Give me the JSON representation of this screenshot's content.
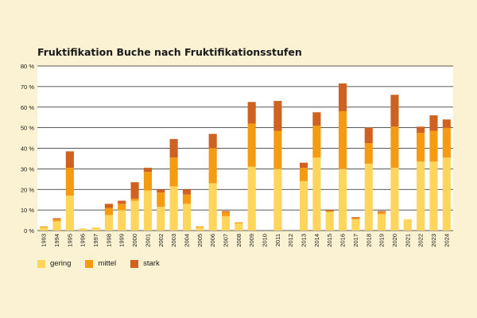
{
  "colors": {
    "background": "#fbf2d3",
    "plot_background": "#ffffff",
    "gridline": "#222222",
    "gering": "#ffd55c",
    "mittel": "#f59b12",
    "stark": "#cf6220"
  },
  "chart_data": {
    "type": "bar",
    "stacked": true,
    "title": "Fruktifikation Buche nach Fruktifikationsstufen",
    "xlabel": "",
    "ylabel": "",
    "ylim": [
      0,
      80
    ],
    "y_ticks": [
      0,
      10,
      20,
      30,
      40,
      50,
      60,
      70,
      80
    ],
    "y_tick_labels": [
      "0 %",
      "10 %",
      "20 %",
      "30 %",
      "40 %",
      "50 %",
      "60 %",
      "70 %",
      "80 %"
    ],
    "grid": true,
    "legend_position": "bottom-left",
    "categories": [
      "1993",
      "1994",
      "1995",
      "1996",
      "1997",
      "1998",
      "1999",
      "2000",
      "2001",
      "2002",
      "2003",
      "2004",
      "2005",
      "2006",
      "2007",
      "2008",
      "2009",
      "2010",
      "2011",
      "2012",
      "2013",
      "2014",
      "2015",
      "2016",
      "2017",
      "2018",
      "2019",
      "2020",
      "2021",
      "2022",
      "2023",
      "2024"
    ],
    "series": [
      {
        "name": "gering",
        "color": "#ffd55c",
        "values": [
          1.5,
          4.5,
          17,
          1,
          1.5,
          7.5,
          10,
          14.5,
          19.5,
          11.5,
          21.5,
          13,
          1.5,
          23,
          7,
          3.5,
          31,
          0,
          30,
          0,
          24,
          35.5,
          9,
          30,
          5.5,
          32.5,
          8,
          30.5,
          5.5,
          33.5,
          33.5,
          35.5
        ]
      },
      {
        "name": "mittel",
        "color": "#f59b12",
        "values": [
          0.5,
          1,
          13.5,
          0,
          0,
          3.5,
          3,
          1,
          9,
          7,
          14,
          4.5,
          0.5,
          17,
          2,
          0.5,
          21,
          0,
          18.5,
          0,
          6.5,
          15.5,
          0.5,
          28,
          0.5,
          10,
          1,
          20,
          0,
          14,
          15,
          14.5
        ]
      },
      {
        "name": "stark",
        "color": "#cf6220",
        "values": [
          0,
          0.5,
          8,
          0,
          0,
          2,
          1.5,
          8,
          2,
          1.5,
          9,
          2.5,
          0,
          7,
          0.5,
          0,
          10.5,
          0,
          14.5,
          0,
          2.5,
          6.5,
          0.5,
          13.5,
          0.5,
          7.5,
          0.5,
          15.5,
          0,
          3,
          7.5,
          4
        ]
      }
    ]
  }
}
